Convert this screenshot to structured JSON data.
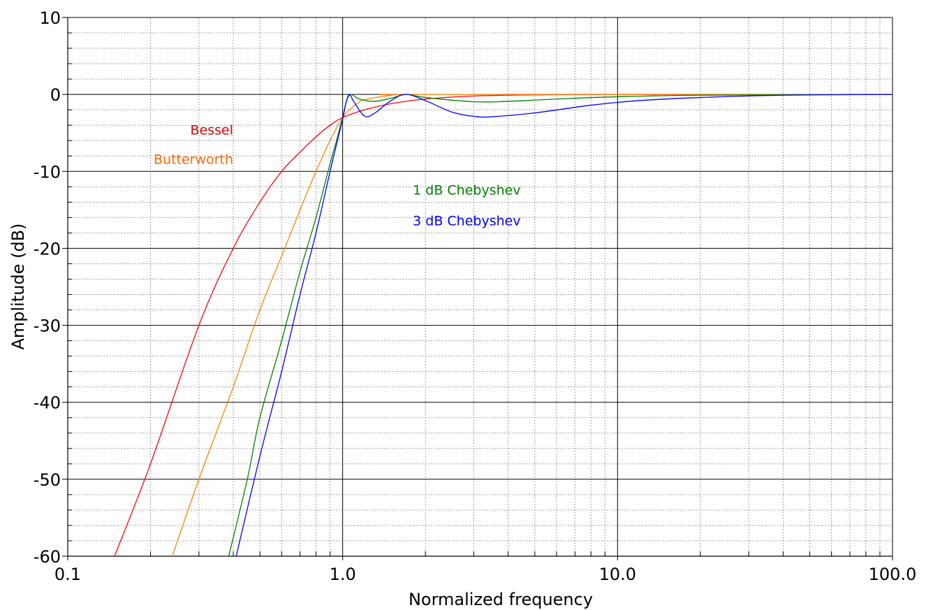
{
  "chart_data": {
    "type": "line",
    "xlabel": "Normalized frequency",
    "ylabel": "Amplitude (dB)",
    "x_scale": "log",
    "xlim": [
      0.1,
      100.0
    ],
    "ylim": [
      -60,
      10
    ],
    "x_ticks": [
      0.1,
      1.0,
      10.0,
      100.0
    ],
    "x_tick_labels": [
      "0.1",
      "1.0",
      "10.0",
      "100.0"
    ],
    "y_ticks": [
      10,
      0,
      -10,
      -20,
      -30,
      -40,
      -50,
      -60
    ],
    "y_tick_labels": [
      "10",
      "0",
      "-10",
      "-20",
      "-30",
      "-40",
      "-50",
      "-60"
    ],
    "grid": true,
    "series": [
      {
        "name": "Bessel",
        "color": "#ff0000",
        "points": [
          [
            0.148,
            -60
          ],
          [
            0.2,
            -48
          ],
          [
            0.3,
            -30
          ],
          [
            0.4,
            -20
          ],
          [
            0.5,
            -14
          ],
          [
            0.6,
            -10
          ],
          [
            0.7,
            -7.5
          ],
          [
            0.8,
            -5.5
          ],
          [
            0.9,
            -4
          ],
          [
            1.0,
            -3
          ],
          [
            1.2,
            -2
          ],
          [
            1.5,
            -1.2
          ],
          [
            2.0,
            -0.6
          ],
          [
            3.0,
            -0.2
          ],
          [
            5.0,
            -0.05
          ],
          [
            10.0,
            0
          ],
          [
            100.0,
            0
          ]
        ]
      },
      {
        "name": "Butterworth",
        "color": "#ff8000",
        "points": [
          [
            0.24,
            -60
          ],
          [
            0.3,
            -50
          ],
          [
            0.4,
            -38
          ],
          [
            0.5,
            -28
          ],
          [
            0.6,
            -21
          ],
          [
            0.7,
            -15
          ],
          [
            0.8,
            -10
          ],
          [
            0.9,
            -6
          ],
          [
            1.0,
            -3
          ],
          [
            1.1,
            -1.5
          ],
          [
            1.2,
            -0.7
          ],
          [
            1.5,
            -0.15
          ],
          [
            2.0,
            0
          ],
          [
            100.0,
            0
          ]
        ]
      },
      {
        "name": "1 dB Chebyshev",
        "color": "#008000",
        "points": [
          [
            0.385,
            -60
          ],
          [
            0.45,
            -50
          ],
          [
            0.5,
            -42
          ],
          [
            0.6,
            -32
          ],
          [
            0.7,
            -23
          ],
          [
            0.8,
            -16
          ],
          [
            0.9,
            -9
          ],
          [
            0.95,
            -6
          ],
          [
            1.0,
            -3
          ],
          [
            1.03,
            -1
          ],
          [
            1.07,
            0
          ],
          [
            1.15,
            -0.6
          ],
          [
            1.3,
            -0.9
          ],
          [
            1.5,
            -0.5
          ],
          [
            1.7,
            0
          ],
          [
            2.0,
            -0.4
          ],
          [
            3.0,
            -0.95
          ],
          [
            4.0,
            -0.9
          ],
          [
            6.0,
            -0.6
          ],
          [
            10.0,
            -0.3
          ],
          [
            20.0,
            -0.1
          ],
          [
            100.0,
            0
          ]
        ]
      },
      {
        "name": "3 dB Chebyshev",
        "color": "#0000ff",
        "points": [
          [
            0.41,
            -60
          ],
          [
            0.5,
            -47
          ],
          [
            0.6,
            -36
          ],
          [
            0.7,
            -26
          ],
          [
            0.8,
            -18
          ],
          [
            0.9,
            -10
          ],
          [
            0.95,
            -6.5
          ],
          [
            1.0,
            -3.2
          ],
          [
            1.03,
            -1
          ],
          [
            1.06,
            0
          ],
          [
            1.1,
            -1
          ],
          [
            1.2,
            -2.8
          ],
          [
            1.3,
            -2.5
          ],
          [
            1.5,
            -0.8
          ],
          [
            1.7,
            0
          ],
          [
            2.0,
            -0.8
          ],
          [
            2.5,
            -2.3
          ],
          [
            3.0,
            -2.85
          ],
          [
            3.5,
            -2.9
          ],
          [
            5.0,
            -2.4
          ],
          [
            8.0,
            -1.4
          ],
          [
            12.0,
            -0.8
          ],
          [
            20.0,
            -0.4
          ],
          [
            40.0,
            -0.1
          ],
          [
            100.0,
            0
          ]
        ]
      }
    ],
    "annotations": [
      {
        "text": "Bessel",
        "color": "#dd0000",
        "x": 0.4,
        "y": -5.2
      },
      {
        "text": "Butterworth",
        "color": "#ff6600",
        "x": 0.4,
        "y": -9.0
      },
      {
        "text": "1 dB Chebyshev",
        "color": "#008000",
        "x": 1.8,
        "y": -13.0
      },
      {
        "text": "3 dB Chebyshev",
        "color": "#0000ff",
        "x": 1.8,
        "y": -17.0
      }
    ]
  }
}
